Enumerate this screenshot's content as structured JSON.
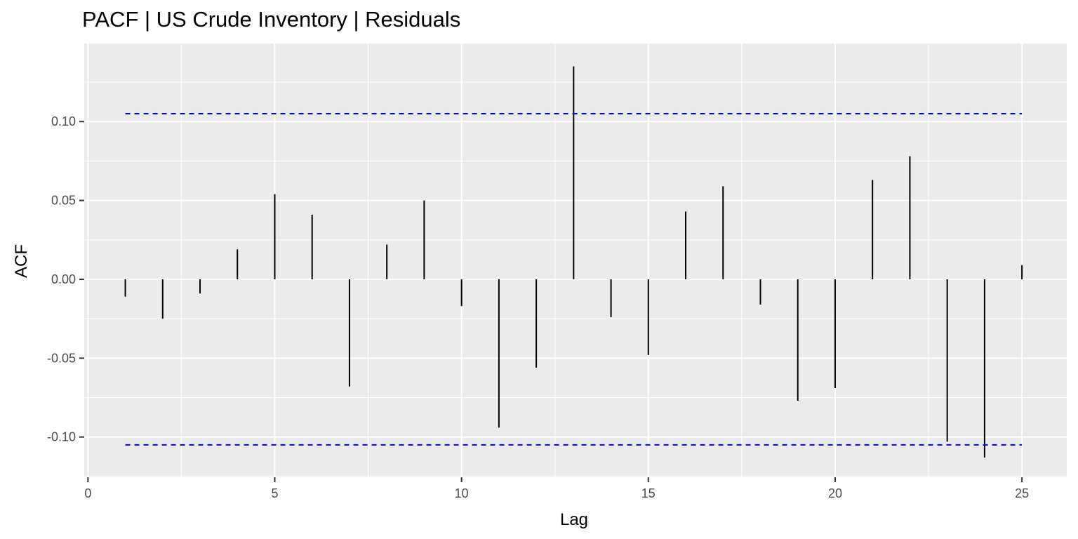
{
  "chart_data": {
    "type": "bar",
    "subtype": "acf-lollipop",
    "title": "PACF | US Crude Inventory | Residuals",
    "xlabel": "Lag",
    "ylabel": "ACF",
    "x": [
      1,
      2,
      3,
      4,
      5,
      6,
      7,
      8,
      9,
      10,
      11,
      12,
      13,
      14,
      15,
      16,
      17,
      18,
      19,
      20,
      21,
      22,
      23,
      24,
      25
    ],
    "values": [
      -0.011,
      -0.025,
      -0.009,
      0.019,
      0.054,
      0.041,
      -0.068,
      0.022,
      0.05,
      -0.017,
      -0.094,
      -0.056,
      0.135,
      -0.024,
      -0.048,
      0.043,
      0.059,
      -0.016,
      -0.077,
      -0.069,
      0.063,
      0.078,
      -0.103,
      -0.113,
      0.009
    ],
    "confidence_bound": 0.105,
    "xlim": [
      -0.1,
      26.2
    ],
    "ylim": [
      -0.1255,
      0.1495
    ],
    "x_ticks": [
      0,
      5,
      10,
      15,
      20,
      25
    ],
    "x_tick_labels": [
      "0",
      "5",
      "10",
      "15",
      "20",
      "25"
    ],
    "y_ticks": [
      -0.1,
      -0.05,
      0.0,
      0.05,
      0.1
    ],
    "y_tick_labels": [
      "-0.10",
      "-0.05",
      "0.00",
      "0.05",
      "0.10"
    ],
    "grid": true,
    "colors": {
      "panel": "#ebebeb",
      "grid": "#ffffff",
      "bar": "#000000",
      "bound": "#0000ff"
    }
  }
}
